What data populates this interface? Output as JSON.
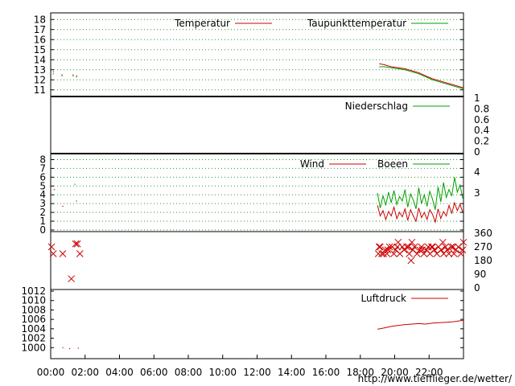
{
  "source_url": "http://www.tiefflieger.de/wetter/",
  "colors": {
    "red": "#cc0000",
    "green": "#00a000",
    "grid": "#2a9a2a",
    "black": "#000000"
  },
  "x_ticks": [
    "00:00",
    "02:00",
    "04:00",
    "06:00",
    "08:00",
    "10:00",
    "12:00",
    "14:00",
    "16:00",
    "18:00",
    "20:00",
    "22:00"
  ],
  "chart_data": [
    {
      "type": "line",
      "panel": "temperature",
      "x_unit": "hours",
      "xlim": [
        0,
        24
      ],
      "ylim": [
        10.5,
        18.5
      ],
      "left_ticks": [
        "11",
        "12",
        "13",
        "14",
        "15",
        "16",
        "17",
        "18"
      ],
      "right_ticks": [],
      "grid": true,
      "legend_placement": "top-right",
      "series": [
        {
          "name": "Temperatur",
          "color": "#cc0000",
          "style": "line",
          "x": [
            0.15,
            0.65,
            1.3,
            1.5,
            19.1,
            19.4,
            19.8,
            20.2,
            20.6,
            21.0,
            21.4,
            21.8,
            22.2,
            22.6,
            23.0,
            23.4,
            23.8,
            24.0
          ],
          "y": [
            12.8,
            12.5,
            12.5,
            12.4,
            13.6,
            13.5,
            13.3,
            13.2,
            13.1,
            12.9,
            12.7,
            12.4,
            12.1,
            11.9,
            11.7,
            11.5,
            11.3,
            11.2
          ]
        },
        {
          "name": "Taupunkttemperatur",
          "color": "#00a000",
          "style": "line",
          "x": [
            0.15,
            0.65,
            1.3,
            1.5,
            19.1,
            19.4,
            19.8,
            20.2,
            20.6,
            21.0,
            21.4,
            21.8,
            22.2,
            22.6,
            23.0,
            23.4,
            23.8,
            24.0
          ],
          "y": [
            12.6,
            12.4,
            12.4,
            12.3,
            13.3,
            13.3,
            13.2,
            13.1,
            13.0,
            12.8,
            12.6,
            12.3,
            12.0,
            11.8,
            11.6,
            11.4,
            11.2,
            11.1
          ]
        }
      ]
    },
    {
      "type": "line",
      "panel": "precipitation",
      "x_unit": "hours",
      "xlim": [
        0,
        24
      ],
      "ylim": [
        0,
        1
      ],
      "left_ticks": [],
      "right_ticks": [
        "0",
        "0.2",
        "0.4",
        "0.6",
        "0.8",
        "1"
      ],
      "grid": false,
      "legend_placement": "top-right",
      "series": [
        {
          "name": "Niederschlag",
          "color": "#00a000",
          "style": "line",
          "x": [],
          "y": []
        }
      ]
    },
    {
      "type": "line",
      "panel": "wind",
      "x_unit": "hours",
      "xlim": [
        0,
        24
      ],
      "ylim": [
        0,
        8.5
      ],
      "left_ticks": [
        "0",
        "1",
        "2",
        "3",
        "4",
        "5",
        "6",
        "7",
        "8"
      ],
      "right_ticks": [
        "3",
        "4"
      ],
      "grid": true,
      "legend_placement": "top-right",
      "series": [
        {
          "name": "Wind",
          "color": "#cc0000",
          "style": "line",
          "x": [
            19.0,
            19.16,
            19.32,
            19.48,
            19.64,
            19.8,
            19.96,
            20.12,
            20.28,
            20.44,
            20.6,
            20.76,
            20.92,
            21.08,
            21.24,
            21.4,
            21.56,
            21.72,
            21.88,
            22.04,
            22.2,
            22.36,
            22.52,
            22.68,
            22.84,
            23.0,
            23.16,
            23.32,
            23.48,
            23.64,
            23.8,
            23.96
          ],
          "y": [
            2.8,
            1.6,
            2.2,
            1.2,
            2.1,
            1.6,
            2.6,
            1.3,
            2.0,
            1.5,
            2.4,
            1.1,
            2.3,
            1.6,
            1.0,
            2.5,
            1.4,
            2.0,
            1.2,
            2.3,
            1.8,
            0.9,
            2.4,
            1.3,
            2.1,
            1.6,
            2.8,
            1.9,
            3.1,
            2.2,
            2.9,
            2.0
          ]
        },
        {
          "name": "Boeen",
          "color": "#00a000",
          "style": "line",
          "x": [
            19.0,
            19.16,
            19.32,
            19.48,
            19.64,
            19.8,
            19.96,
            20.12,
            20.28,
            20.44,
            20.6,
            20.76,
            20.92,
            21.08,
            21.24,
            21.4,
            21.56,
            21.72,
            21.88,
            22.04,
            22.2,
            22.36,
            22.52,
            22.68,
            22.84,
            23.0,
            23.16,
            23.32,
            23.48,
            23.64,
            23.8,
            23.96
          ],
          "y": [
            4.2,
            2.5,
            3.9,
            2.8,
            4.3,
            3.1,
            4.5,
            2.9,
            3.8,
            3.3,
            4.6,
            2.6,
            4.1,
            3.4,
            2.4,
            4.8,
            3.0,
            4.0,
            2.7,
            4.4,
            3.5,
            2.3,
            4.9,
            3.2,
            5.4,
            3.7,
            4.6,
            3.9,
            6.0,
            4.3,
            5.1,
            3.6
          ]
        },
        {
          "name": "",
          "color": "#cc0000",
          "style": "points",
          "x": [
            0.2,
            0.7,
            1.5
          ],
          "y": [
            4.6,
            2.7,
            3.3
          ]
        },
        {
          "name": "",
          "color": "#00a000",
          "style": "points",
          "x": [
            1.4
          ],
          "y": [
            5.2
          ]
        }
      ]
    },
    {
      "type": "scatter",
      "panel": "wind-direction",
      "x_unit": "hours",
      "xlim": [
        0,
        24
      ],
      "ylim": [
        0,
        360
      ],
      "left_ticks": [],
      "right_ticks": [
        "0",
        "90",
        "180",
        "270",
        "360"
      ],
      "grid": false,
      "series": [
        {
          "name": "",
          "color": "#cc0000",
          "marker": "x",
          "x": [
            0.05,
            0.15,
            0.7,
            1.2,
            1.45,
            1.55,
            1.7,
            19.05,
            19.15,
            19.25,
            19.35,
            19.45,
            19.55,
            19.7,
            19.85,
            19.95,
            20.05,
            20.15,
            20.3,
            20.45,
            20.55,
            20.7,
            20.85,
            20.95,
            21.05,
            21.15,
            21.3,
            21.45,
            21.55,
            21.7,
            21.85,
            21.95,
            22.05,
            22.15,
            22.3,
            22.45,
            22.55,
            22.7,
            22.85,
            22.95,
            23.05,
            23.15,
            23.3,
            23.45,
            23.55,
            23.7,
            23.85,
            23.95,
            19.1,
            19.6,
            20.2,
            20.8,
            21.0,
            21.6,
            22.2,
            22.8,
            23.4,
            24.0
          ],
          "y": [
            270,
            225,
            225,
            60,
            290,
            290,
            225,
            225,
            270,
            225,
            225,
            250,
            225,
            270,
            270,
            225,
            250,
            270,
            225,
            270,
            250,
            270,
            225,
            180,
            250,
            270,
            225,
            250,
            270,
            225,
            250,
            270,
            225,
            270,
            250,
            225,
            270,
            250,
            225,
            270,
            250,
            225,
            270,
            225,
            250,
            270,
            225,
            250,
            270,
            250,
            300,
            270,
            300,
            250,
            270,
            300,
            270,
            300
          ]
        }
      ]
    },
    {
      "type": "line",
      "panel": "pressure",
      "x_unit": "hours",
      "xlim": [
        0,
        24
      ],
      "ylim": [
        998,
        1012
      ],
      "left_ticks": [
        "1000",
        "1002",
        "1004",
        "1006",
        "1008",
        "1010",
        "1012"
      ],
      "right_ticks": [],
      "grid": false,
      "legend_placement": "top-right",
      "series": [
        {
          "name": "Luftdruck",
          "color": "#cc0000",
          "style": "line",
          "x": [
            0.7,
            1.1,
            1.6,
            19.0,
            19.4,
            19.8,
            20.2,
            20.6,
            21.0,
            21.4,
            21.8,
            22.2,
            22.6,
            23.0,
            23.4,
            23.8,
            24.0
          ],
          "y": [
            1000,
            999.8,
            999.9,
            1003.9,
            1004.2,
            1004.5,
            1004.7,
            1004.9,
            1005.0,
            1005.1,
            1005.0,
            1005.2,
            1005.3,
            1005.4,
            1005.5,
            1005.7,
            1005.8
          ]
        }
      ]
    }
  ]
}
